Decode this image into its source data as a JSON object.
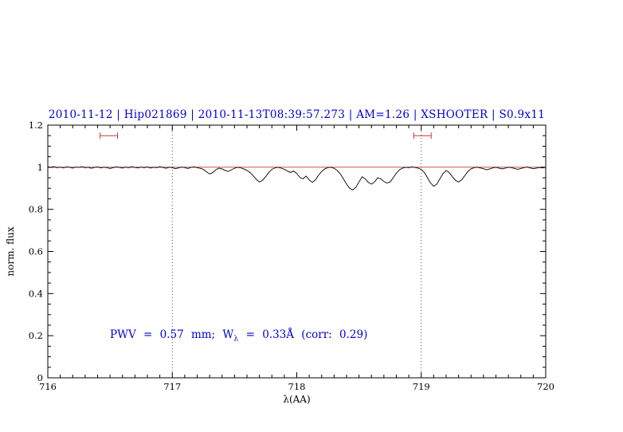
{
  "title": "2010-11-12 | Hip021869 | 2010-11-13T08:39:57.273 | AM=1.26 | XSHOOTER | S0.9x11",
  "annotation": {
    "pre": "PWV = 0.57 mm; W",
    "sub": "λ",
    "post": " = 0.33Å (corr: 0.29)"
  },
  "colors": {
    "title_blue": "#0000cd",
    "line_red": "#cc3333",
    "spectrum_black": "#000000",
    "vline_gray": "#333333"
  },
  "chart_data": {
    "type": "line",
    "title": "2010-11-12 | Hip021869 | 2010-11-13T08:39:57.273 | AM=1.26 | XSHOOTER | S0.9x11",
    "xlabel": "λ(AA)",
    "ylabel": "norm. flux",
    "xlim": [
      716,
      720
    ],
    "ylim": [
      0,
      1.2
    ],
    "x_ticks": [
      716,
      717,
      718,
      719,
      720
    ],
    "x_tick_labels": [
      "716",
      "717",
      "718",
      "719",
      "720"
    ],
    "y_ticks": [
      0,
      0.2,
      0.4,
      0.6,
      0.8,
      1,
      1.2
    ],
    "y_tick_labels": [
      "0",
      "0.2",
      "0.4",
      "0.6",
      "0.8",
      "1",
      "1.2"
    ],
    "x_minor_step": 0.1,
    "y_minor_step": 0.05,
    "grid": false,
    "legend": false,
    "vlines": [
      717,
      719
    ],
    "continuum_y": 1.0,
    "range_markers": [
      {
        "x1": 716.42,
        "x2": 716.56,
        "y": 1.15
      },
      {
        "x1": 718.94,
        "x2": 719.08,
        "y": 1.15
      }
    ],
    "annotation_text": "PWV = 0.57 mm; Wλ = 0.33Å (corr: 0.29)",
    "annotation_xy": [
      716.5,
      0.2
    ],
    "series": [
      {
        "name": "spectrum",
        "x_start": 716.0,
        "x_step": 0.025,
        "flux": [
          1.002,
          0.999,
          1.003,
          0.998,
          1.001,
          0.997,
          1.002,
          1.0,
          0.996,
          1.001,
          0.999,
          1.003,
          0.998,
          1.0,
          0.995,
          0.999,
          1.002,
          0.997,
          1.0,
          0.998,
          0.994,
          0.998,
          1.002,
          0.999,
          0.996,
          1.001,
          0.998,
          1.003,
          0.999,
          0.997,
          1.001,
          0.998,
          1.002,
          0.996,
          1.0,
          0.998,
          1.003,
          0.999,
          0.995,
          1.0,
          0.998,
          0.993,
          0.997,
          1.001,
          0.998,
          0.994,
          0.999,
          1.002,
          0.998,
          0.995,
          0.99,
          0.978,
          0.968,
          0.975,
          0.988,
          0.996,
          0.992,
          0.985,
          0.98,
          0.988,
          0.995,
          1.0,
          0.997,
          0.992,
          0.985,
          0.975,
          0.96,
          0.942,
          0.93,
          0.938,
          0.955,
          0.975,
          0.99,
          0.997,
          1.0,
          0.996,
          0.99,
          0.982,
          0.975,
          0.982,
          0.97,
          0.952,
          0.945,
          0.958,
          0.94,
          0.928,
          0.94,
          0.962,
          0.98,
          0.992,
          0.998,
          1.0,
          0.995,
          0.985,
          0.968,
          0.945,
          0.92,
          0.9,
          0.892,
          0.905,
          0.93,
          0.955,
          0.945,
          0.928,
          0.92,
          0.93,
          0.95,
          0.945,
          0.932,
          0.925,
          0.93,
          0.95,
          0.972,
          0.988,
          0.996,
          1.0,
          0.998,
          1.002,
          0.999,
          0.996,
          0.99,
          0.975,
          0.95,
          0.925,
          0.91,
          0.92,
          0.945,
          0.97,
          0.985,
          0.975,
          0.955,
          0.938,
          0.93,
          0.94,
          0.96,
          0.98,
          0.992,
          0.998,
          1.0,
          0.997,
          0.993,
          0.988,
          0.992,
          0.997,
          1.0,
          0.996,
          0.992,
          0.996,
          1.0,
          0.998,
          0.994,
          0.99,
          0.994,
          0.998,
          1.001,
          0.997,
          0.993,
          0.996,
          0.999,
          0.997,
          1.0
        ]
      }
    ]
  }
}
